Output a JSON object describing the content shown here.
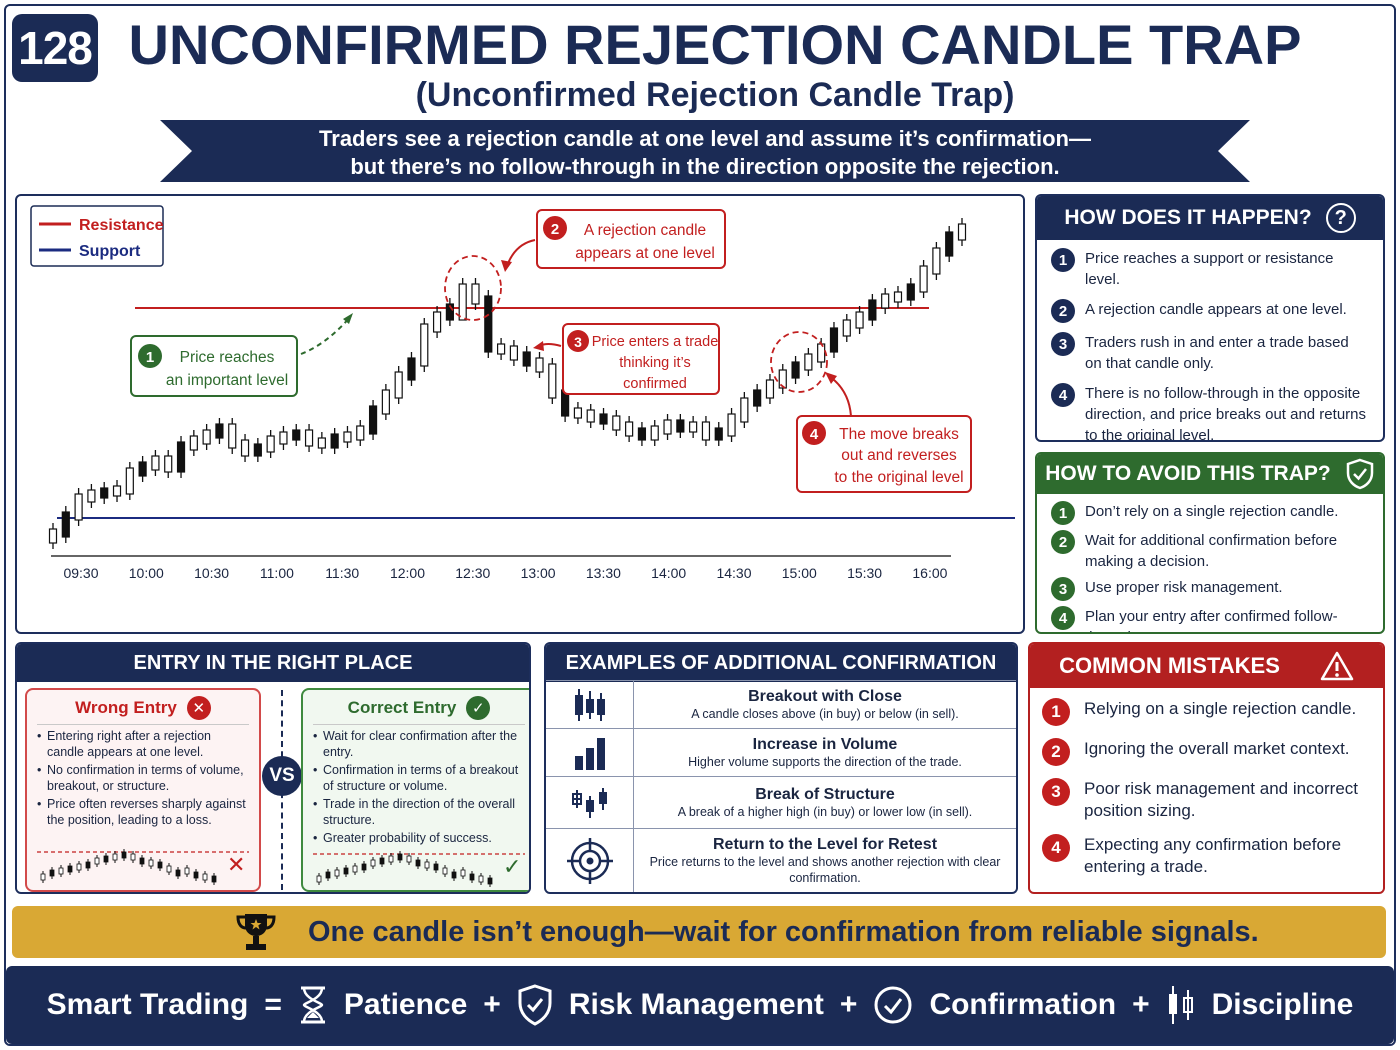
{
  "header": {
    "number": "128",
    "title": "UNCONFIRMED REJECTION CANDLE TRAP",
    "subtitle": "(Unconfirmed Rejection Candle Trap)",
    "ribbon_line1": "Traders see a rejection candle at one level and assume it’s confirmation—",
    "ribbon_line2": "but there’s no follow-through in the direction opposite the rejection."
  },
  "chart_data": {
    "type": "candlestick",
    "title": "",
    "xlabel": "",
    "ylabel": "",
    "x_ticks": [
      "09:30",
      "10:00",
      "10:30",
      "11:00",
      "11:30",
      "12:00",
      "12:30",
      "13:00",
      "13:30",
      "14:00",
      "14:30",
      "15:00",
      "15:30",
      "16:00"
    ],
    "legend": [
      {
        "name": "Resistance",
        "color": "#c21f1f"
      },
      {
        "name": "Support",
        "color": "#1b2b80"
      }
    ],
    "legend_position": "top-left",
    "grid": false,
    "resistance_color": "#c21f1f",
    "support_color": "#1b2b80",
    "annotations": [
      {
        "id": "1",
        "line1": "Price reaches",
        "line2": "an important level",
        "color": "#2e6b2e"
      },
      {
        "id": "2",
        "line1": "A rejection candle",
        "line2": "appears at one level",
        "color": "#c21f1f"
      },
      {
        "id": "3",
        "line1": "Price enters a trade",
        "line2": "thinking it’s",
        "line3": "confirmed",
        "color": "#c21f1f"
      },
      {
        "id": "4",
        "line1": "The move breaks",
        "line2": "out and reverses",
        "line3": "to the original level",
        "color": "#c21f1f"
      }
    ]
  },
  "how": {
    "title": "HOW DOES IT HAPPEN?",
    "icon": "question-icon",
    "items": [
      {
        "n": "1",
        "text": "Price reaches a support or resistance level."
      },
      {
        "n": "2",
        "text": "A rejection candle appears at one level."
      },
      {
        "n": "3",
        "text": "Traders rush in and enter a trade based on that candle only."
      },
      {
        "n": "4",
        "text": "There is no follow-through in the opposite direction, and price breaks out and returns to the original level."
      }
    ]
  },
  "avoid": {
    "title": "HOW TO AVOID THIS TRAP?",
    "icon": "shield-check-icon",
    "items": [
      {
        "n": "1",
        "text": "Don’t rely on a single rejection candle."
      },
      {
        "n": "2",
        "text": "Wait for additional confirmation before making a decision."
      },
      {
        "n": "3",
        "text": "Use proper risk management."
      },
      {
        "n": "4",
        "text": "Plan your entry after confirmed follow-through."
      }
    ]
  },
  "entry": {
    "title": "ENTRY  IN  THE RIGHT PLACE",
    "vs": "VS",
    "wrong": {
      "title": "Wrong Entry",
      "items": [
        "Entering right after a rejection candle appears at one level.",
        "No confirmation in terms of volume, breakout, or structure.",
        "Price often reverses sharply against the position, leading to a loss."
      ]
    },
    "correct": {
      "title": "Correct Entry",
      "items": [
        "Wait for clear confirmation after the entry.",
        "Confirmation in terms of a breakout of structure or volume.",
        "Trade in the direction of the overall structure.",
        "Greater probability of success."
      ]
    }
  },
  "examples": {
    "title": "EXAMPLES OF ADDITIONAL CONFIRMATION",
    "items": [
      {
        "icon": "candles-icon",
        "title": "Breakout with Close",
        "desc": "A candle closes above (in buy) or below (in sell)."
      },
      {
        "icon": "volume-bars-icon",
        "title": "Increase in Volume",
        "desc": "Higher volume supports the direction of the trade."
      },
      {
        "icon": "structure-icon",
        "title": "Break of Structure",
        "desc": "A break of a higher high (in buy) or lower low (in sell)."
      },
      {
        "icon": "target-icon",
        "title": "Return to the Level for Retest",
        "desc": "Price returns to the level and shows another rejection with clear confirmation."
      }
    ]
  },
  "mistakes": {
    "title": "COMMON MISTAKES",
    "icon": "warning-icon",
    "items": [
      {
        "n": "1",
        "text": "Relying on a single rejection candle."
      },
      {
        "n": "2",
        "text": "Ignoring the overall market context."
      },
      {
        "n": "3",
        "text": "Poor risk management and incorrect position sizing."
      },
      {
        "n": "4",
        "text": "Expecting any confirmation before entering a trade."
      }
    ]
  },
  "banner": {
    "text": "One candle isn’t enough—wait for confirmation from reliable signals.",
    "icon": "trophy-icon"
  },
  "footer": {
    "smart": "Smart Trading",
    "eq": "=",
    "plus": "+",
    "patience": "Patience",
    "risk": "Risk Management",
    "confirmation": "Confirmation",
    "discipline": "Discipline"
  }
}
